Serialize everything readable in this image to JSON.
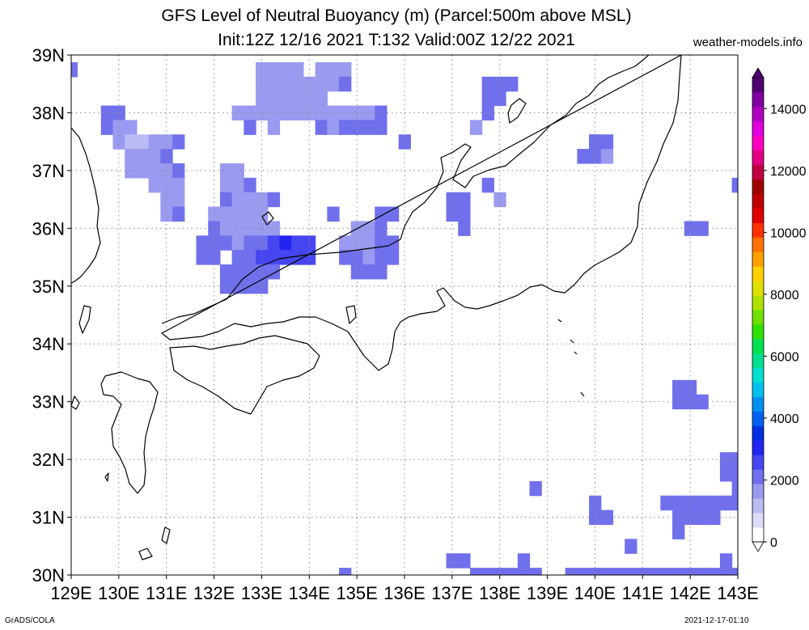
{
  "title_line1": "GFS Level of Neutral Buoyancy (m) (Parcel:500m above MSL)",
  "title_line2": "Init:12Z 12/16 2021 T:132 Valid:00Z 12/22 2021",
  "site": "weather-models.info",
  "footer_left": "GrADS/COLA",
  "footer_right": "2021-12-17-01:10",
  "axes": {
    "lat_labels": [
      "39N",
      "38N",
      "37N",
      "36N",
      "35N",
      "34N",
      "33N",
      "32N",
      "31N",
      "30N"
    ],
    "lon_labels": [
      "129E",
      "130E",
      "131E",
      "132E",
      "133E",
      "134E",
      "135E",
      "136E",
      "137E",
      "138E",
      "139E",
      "140E",
      "141E",
      "142E",
      "143E"
    ],
    "lat_range": [
      30,
      39
    ],
    "lon_range": [
      129,
      143
    ]
  },
  "colorbar": {
    "labels": [
      "14000",
      "12000",
      "10000",
      "8000",
      "6000",
      "4000",
      "2000",
      "0"
    ],
    "min": 0,
    "max": 15000,
    "colors": [
      "#ffffff",
      "#dcdcf8",
      "#bcbcf4",
      "#9a9af0",
      "#7070ec",
      "#4646f0",
      "#2424f0",
      "#0030e0",
      "#0060f0",
      "#0090f0",
      "#00c0f0",
      "#00e0d0",
      "#00e090",
      "#00e050",
      "#30e000",
      "#70e000",
      "#b0e000",
      "#e0e000",
      "#ffd000",
      "#ffa000",
      "#ff7000",
      "#ff3000",
      "#e00000",
      "#c00000",
      "#a00000",
      "#c00040",
      "#e00080",
      "#ff00c0",
      "#e000e0",
      "#b000c0",
      "#8000a0",
      "#500070"
    ]
  },
  "field": {
    "description_units": "m",
    "cells": [
      [
        129.0,
        38.75,
        1900
      ],
      [
        129.75,
        38.0,
        2000
      ],
      [
        130.0,
        38.0,
        2100
      ],
      [
        129.75,
        37.75,
        1900
      ],
      [
        130.0,
        37.75,
        1500
      ],
      [
        130.25,
        37.75,
        1800
      ],
      [
        130.0,
        37.5,
        1700
      ],
      [
        130.25,
        37.5,
        1400
      ],
      [
        130.5,
        37.5,
        1300
      ],
      [
        130.75,
        37.5,
        1600
      ],
      [
        131.0,
        37.5,
        1800
      ],
      [
        131.25,
        37.5,
        2200
      ],
      [
        130.25,
        37.25,
        1600
      ],
      [
        130.5,
        37.25,
        1500
      ],
      [
        130.75,
        37.25,
        1700
      ],
      [
        131.0,
        37.25,
        1900
      ],
      [
        130.25,
        37.0,
        1800
      ],
      [
        130.5,
        37.0,
        1600
      ],
      [
        130.75,
        37.0,
        1500
      ],
      [
        131.0,
        37.0,
        1700
      ],
      [
        131.25,
        37.0,
        1900
      ],
      [
        130.75,
        36.75,
        1700
      ],
      [
        131.0,
        36.75,
        1600
      ],
      [
        131.25,
        36.75,
        1800
      ],
      [
        131.0,
        36.5,
        1700
      ],
      [
        131.25,
        36.5,
        1800
      ],
      [
        131.0,
        36.25,
        1800
      ],
      [
        131.25,
        36.25,
        1900
      ],
      [
        132.25,
        37.0,
        1800
      ],
      [
        132.5,
        37.0,
        1700
      ],
      [
        132.25,
        36.75,
        1700
      ],
      [
        132.5,
        36.75,
        1600
      ],
      [
        132.75,
        36.75,
        1900
      ],
      [
        132.25,
        36.5,
        1900
      ],
      [
        132.5,
        36.5,
        1700
      ],
      [
        132.75,
        36.5,
        1500
      ],
      [
        133.0,
        36.5,
        1700
      ],
      [
        133.25,
        36.5,
        1900
      ],
      [
        132.0,
        36.25,
        1800
      ],
      [
        132.25,
        36.25,
        1700
      ],
      [
        132.5,
        36.25,
        1600
      ],
      [
        132.75,
        36.25,
        1500
      ],
      [
        133.0,
        36.25,
        1600
      ],
      [
        132.0,
        36.0,
        1900
      ],
      [
        132.25,
        36.0,
        1800
      ],
      [
        132.5,
        36.0,
        1700
      ],
      [
        132.75,
        36.0,
        1500
      ],
      [
        133.0,
        36.0,
        1600
      ],
      [
        133.25,
        36.0,
        1800
      ],
      [
        131.75,
        35.75,
        1900
      ],
      [
        132.0,
        35.75,
        2000
      ],
      [
        132.25,
        35.75,
        1900
      ],
      [
        132.5,
        35.75,
        1800
      ],
      [
        132.75,
        35.75,
        2100
      ],
      [
        133.0,
        35.75,
        2200
      ],
      [
        133.25,
        35.75,
        2400
      ],
      [
        133.5,
        35.75,
        2900
      ],
      [
        133.75,
        35.75,
        2800
      ],
      [
        134.0,
        35.75,
        2400
      ],
      [
        131.75,
        35.5,
        2000
      ],
      [
        132.0,
        35.5,
        2100
      ],
      [
        132.5,
        35.5,
        2200
      ],
      [
        132.75,
        35.5,
        2300
      ],
      [
        133.0,
        35.5,
        2400
      ],
      [
        133.25,
        35.5,
        2600
      ],
      [
        133.5,
        35.5,
        2800
      ],
      [
        133.75,
        35.5,
        2700
      ],
      [
        134.0,
        35.5,
        2500
      ],
      [
        132.25,
        35.25,
        2100
      ],
      [
        132.5,
        35.25,
        2200
      ],
      [
        132.75,
        35.25,
        2300
      ],
      [
        133.0,
        35.25,
        2200
      ],
      [
        133.25,
        35.25,
        2100
      ],
      [
        132.25,
        35.0,
        2000
      ],
      [
        132.5,
        35.0,
        2100
      ],
      [
        132.75,
        35.0,
        2100
      ],
      [
        133.0,
        35.0,
        2000
      ],
      [
        133.0,
        38.75,
        1700
      ],
      [
        133.25,
        38.75,
        1600
      ],
      [
        133.5,
        38.75,
        1600
      ],
      [
        133.75,
        38.75,
        1700
      ],
      [
        134.25,
        38.75,
        1800
      ],
      [
        134.5,
        38.75,
        1800
      ],
      [
        134.75,
        38.75,
        1800
      ],
      [
        133.0,
        38.5,
        1600
      ],
      [
        133.25,
        38.5,
        1500
      ],
      [
        133.5,
        38.5,
        1500
      ],
      [
        133.75,
        38.5,
        1600
      ],
      [
        134.0,
        38.5,
        1700
      ],
      [
        134.25,
        38.5,
        1700
      ],
      [
        134.5,
        38.5,
        1800
      ],
      [
        134.75,
        38.5,
        1900
      ],
      [
        133.0,
        38.25,
        1700
      ],
      [
        133.25,
        38.25,
        1600
      ],
      [
        133.5,
        38.25,
        1500
      ],
      [
        133.75,
        38.25,
        1500
      ],
      [
        134.0,
        38.25,
        1600
      ],
      [
        134.25,
        38.25,
        1800
      ],
      [
        132.5,
        38.0,
        1800
      ],
      [
        132.75,
        38.0,
        1700
      ],
      [
        133.0,
        38.0,
        1600
      ],
      [
        133.25,
        38.0,
        1500
      ],
      [
        133.5,
        38.0,
        1500
      ],
      [
        133.75,
        38.0,
        1600
      ],
      [
        134.0,
        38.0,
        1700
      ],
      [
        134.25,
        38.0,
        1800
      ],
      [
        134.5,
        38.0,
        1800
      ],
      [
        134.75,
        38.0,
        1700
      ],
      [
        135.0,
        38.0,
        1800
      ],
      [
        135.25,
        38.0,
        1800
      ],
      [
        135.5,
        38.0,
        1900
      ],
      [
        132.75,
        37.75,
        1900
      ],
      [
        133.25,
        37.75,
        1800
      ],
      [
        134.25,
        37.75,
        1900
      ],
      [
        134.5,
        37.75,
        1800
      ],
      [
        134.75,
        37.75,
        1900
      ],
      [
        135.0,
        37.75,
        1900
      ],
      [
        135.25,
        37.75,
        2000
      ],
      [
        135.5,
        37.75,
        2000
      ],
      [
        136.0,
        37.5,
        2000
      ],
      [
        134.5,
        36.25,
        2000
      ],
      [
        135.0,
        36.0,
        1800
      ],
      [
        135.5,
        36.25,
        1900
      ],
      [
        135.75,
        36.25,
        2000
      ],
      [
        134.75,
        35.75,
        1800
      ],
      [
        135.0,
        35.75,
        1700
      ],
      [
        135.25,
        35.75,
        1600
      ],
      [
        135.5,
        35.75,
        1900
      ],
      [
        135.75,
        35.75,
        2100
      ],
      [
        134.75,
        35.5,
        1900
      ],
      [
        135.0,
        35.5,
        1900
      ],
      [
        135.25,
        35.5,
        1800
      ],
      [
        135.5,
        35.5,
        1900
      ],
      [
        135.75,
        35.5,
        2100
      ],
      [
        135.0,
        35.25,
        2200
      ],
      [
        135.25,
        35.25,
        2300
      ],
      [
        135.5,
        35.25,
        2100
      ],
      [
        135.0,
        36.0,
        1700
      ],
      [
        135.25,
        36.0,
        1700
      ],
      [
        135.5,
        36.0,
        1900
      ],
      [
        135.0,
        35.75,
        1700
      ],
      [
        137.0,
        36.5,
        2000
      ],
      [
        137.25,
        36.5,
        1900
      ],
      [
        137.0,
        36.25,
        2200
      ],
      [
        137.25,
        36.25,
        2100
      ],
      [
        137.25,
        36.0,
        2000
      ],
      [
        137.5,
        37.75,
        1800
      ],
      [
        137.75,
        36.75,
        2000
      ],
      [
        138.0,
        36.5,
        1700
      ],
      [
        137.75,
        38.5,
        2000
      ],
      [
        138.0,
        38.5,
        1900
      ],
      [
        138.25,
        38.5,
        1900
      ],
      [
        137.75,
        38.25,
        2000
      ],
      [
        138.0,
        38.25,
        1900
      ],
      [
        137.75,
        38.0,
        1900
      ],
      [
        140.0,
        37.5,
        2100
      ],
      [
        140.25,
        37.5,
        2200
      ],
      [
        139.75,
        37.25,
        2200
      ],
      [
        140.0,
        37.25,
        2000
      ],
      [
        140.25,
        37.25,
        1800
      ],
      [
        140.0,
        37.5,
        2100
      ],
      [
        143.0,
        36.75,
        1900
      ],
      [
        142.0,
        36.0,
        2200
      ],
      [
        142.25,
        36.0,
        2100
      ],
      [
        141.75,
        33.25,
        2100
      ],
      [
        142.0,
        33.25,
        2200
      ],
      [
        141.75,
        33.0,
        2000
      ],
      [
        142.0,
        33.0,
        2100
      ],
      [
        142.25,
        33.0,
        2000
      ],
      [
        142.75,
        32.0,
        2200
      ],
      [
        143.0,
        32.0,
        2300
      ],
      [
        142.75,
        31.75,
        2100
      ],
      [
        143.0,
        31.75,
        2000
      ],
      [
        143.0,
        31.5,
        2100
      ],
      [
        141.5,
        31.25,
        2100
      ],
      [
        141.75,
        31.25,
        2000
      ],
      [
        142.0,
        31.25,
        2000
      ],
      [
        142.25,
        31.25,
        2100
      ],
      [
        142.5,
        31.25,
        1900
      ],
      [
        142.75,
        31.25,
        2000
      ],
      [
        143.0,
        31.25,
        2100
      ],
      [
        141.75,
        31.0,
        2000
      ],
      [
        142.0,
        31.0,
        1900
      ],
      [
        142.25,
        31.0,
        2000
      ],
      [
        142.5,
        31.0,
        2200
      ],
      [
        141.75,
        30.75,
        1900
      ],
      [
        138.75,
        31.5,
        2000
      ],
      [
        140.0,
        31.25,
        2000
      ],
      [
        140.0,
        31.0,
        1900
      ],
      [
        140.25,
        31.0,
        2000
      ],
      [
        140.75,
        30.5,
        2000
      ],
      [
        142.75,
        30.25,
        1900
      ],
      [
        137.0,
        30.25,
        2200
      ],
      [
        137.25,
        30.25,
        2300
      ],
      [
        138.5,
        30.25,
        2000
      ],
      [
        134.75,
        30.0,
        2100
      ],
      [
        137.5,
        30.0,
        2100
      ],
      [
        137.75,
        30.0,
        2200
      ],
      [
        138.0,
        30.0,
        2100
      ],
      [
        138.25,
        30.0,
        2000
      ],
      [
        138.5,
        30.0,
        2100
      ],
      [
        138.75,
        30.0,
        2200
      ],
      [
        139.5,
        30.0,
        2100
      ],
      [
        139.75,
        30.0,
        2200
      ],
      [
        140.0,
        30.0,
        2300
      ],
      [
        140.25,
        30.0,
        2200
      ],
      [
        140.5,
        30.0,
        2100
      ],
      [
        140.75,
        30.0,
        2000
      ],
      [
        141.0,
        30.0,
        2100
      ],
      [
        141.25,
        30.0,
        2200
      ],
      [
        141.5,
        30.0,
        2300
      ],
      [
        141.75,
        30.0,
        2200
      ],
      [
        142.0,
        30.0,
        2100
      ],
      [
        142.25,
        30.0,
        2200
      ],
      [
        142.5,
        30.0,
        2100
      ],
      [
        142.75,
        30.0,
        2000
      ],
      [
        143.0,
        30.0,
        2100
      ]
    ]
  }
}
